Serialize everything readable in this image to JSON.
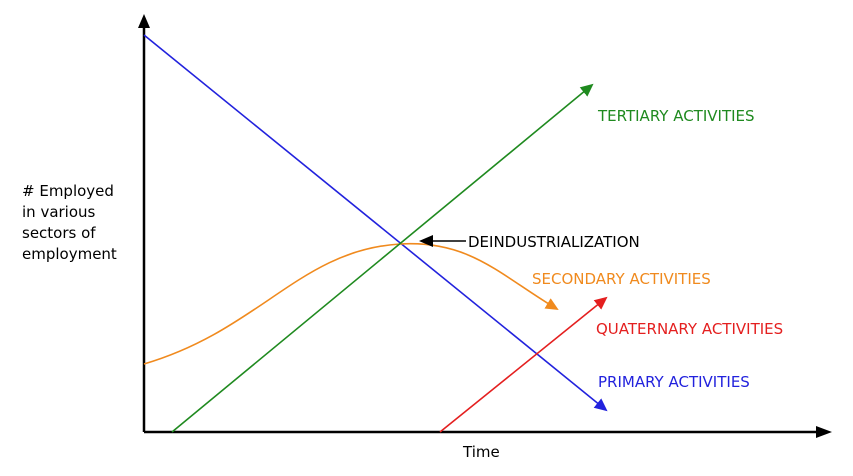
{
  "chart_data": {
    "type": "line",
    "title": "",
    "xlabel": "Time",
    "ylabel_lines": [
      "# Employed",
      "in various",
      "sectors of",
      "employment"
    ],
    "series": [
      {
        "name": "PRIMARY ACTIVITIES",
        "color": "#2222dd",
        "trend": "decreasing linearly",
        "arrow": true
      },
      {
        "name": "SECONDARY ACTIVITIES",
        "color": "#f08a1e",
        "trend": "rises to a peak then declines",
        "arrow": true
      },
      {
        "name": "TERTIARY ACTIVITIES",
        "color": "#1f8a1f",
        "trend": "increasing linearly",
        "arrow": true
      },
      {
        "name": "QUATERNARY ACTIVITIES",
        "color": "#e41f1f",
        "trend": "increasing linearly, starts late",
        "arrow": true
      }
    ],
    "annotations": [
      {
        "text": "DEINDUSTRIALIZATION",
        "points_to": "intersection of primary, secondary and tertiary curves"
      }
    ],
    "axis_color": "#000000",
    "grid": false,
    "ticks": false
  }
}
